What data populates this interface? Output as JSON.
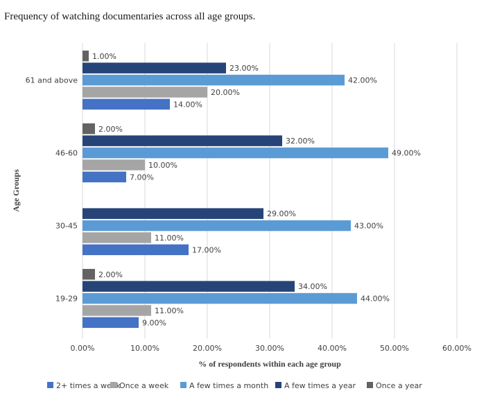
{
  "caption": "Frequency of watching documentaries across all age groups.",
  "chart_data": {
    "type": "bar",
    "orientation": "horizontal",
    "categories": [
      "19-29",
      "30-45",
      "46-60",
      "61 and above"
    ],
    "series": [
      {
        "name": "2+ times a week",
        "color": "#4472c4",
        "values": [
          9,
          17,
          7,
          14
        ]
      },
      {
        "name": "Once a week",
        "color": "#a5a5a5",
        "values": [
          11,
          11,
          10,
          20
        ]
      },
      {
        "name": "A few times a month",
        "color": "#5b9bd5",
        "values": [
          44,
          43,
          49,
          42
        ]
      },
      {
        "name": "A few times a year",
        "color": "#264478",
        "values": [
          34,
          29,
          32,
          23
        ]
      },
      {
        "name": "Once a year",
        "color": "#636363",
        "values": [
          2,
          null,
          2,
          1
        ]
      }
    ],
    "xlabel": "% of respondents within each age group",
    "ylabel": "Age Groups",
    "xlim": [
      0,
      60
    ],
    "xticks": [
      "0.00%",
      "10.00%",
      "20.00%",
      "30.00%",
      "40.00%",
      "50.00%",
      "60.00%"
    ],
    "grid": true,
    "legend_position": "bottom"
  }
}
